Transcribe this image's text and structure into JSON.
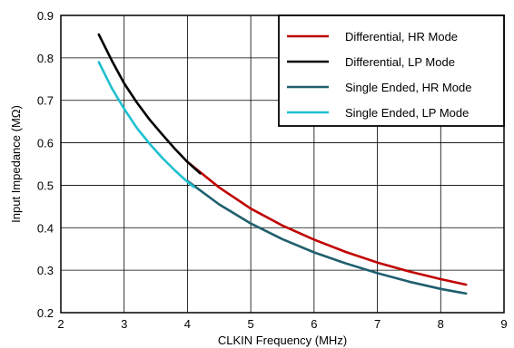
{
  "chart_data": {
    "type": "line",
    "title": "",
    "xlabel": "CLKIN Frequency (MHz)",
    "ylabel": "Input Impedance (MΩ)",
    "xlim": [
      2,
      9
    ],
    "ylim": [
      0.2,
      0.9
    ],
    "xticks": [
      "2",
      "3",
      "4",
      "5",
      "6",
      "7",
      "8",
      "9"
    ],
    "yticks": [
      "0.2",
      "0.3",
      "0.4",
      "0.5",
      "0.6",
      "0.7",
      "0.8",
      "0.9"
    ],
    "grid": true,
    "legend_position": "top-right",
    "series": [
      {
        "name": "Differential, HR Mode",
        "color": "#c00000",
        "x": [
          4.0,
          4.5,
          5.0,
          5.5,
          6.0,
          6.5,
          7.0,
          7.5,
          8.0,
          8.4
        ],
        "y": [
          0.555,
          0.495,
          0.445,
          0.405,
          0.372,
          0.343,
          0.318,
          0.297,
          0.279,
          0.266
        ]
      },
      {
        "name": "Differential, LP Mode",
        "color": "#000000",
        "x": [
          2.6,
          2.8,
          3.0,
          3.2,
          3.4,
          3.6,
          3.8,
          4.0,
          4.2
        ],
        "y": [
          0.855,
          0.795,
          0.74,
          0.695,
          0.655,
          0.62,
          0.586,
          0.555,
          0.528
        ]
      },
      {
        "name": "Single Ended, HR Mode",
        "color": "#1f5f6e",
        "x": [
          4.0,
          4.5,
          5.0,
          5.5,
          6.0,
          6.5,
          7.0,
          7.5,
          8.0,
          8.4
        ],
        "y": [
          0.51,
          0.455,
          0.41,
          0.373,
          0.342,
          0.316,
          0.293,
          0.273,
          0.256,
          0.245
        ]
      },
      {
        "name": "Single Ended, LP Mode",
        "color": "#1fc0d0",
        "x": [
          2.6,
          2.8,
          3.0,
          3.2,
          3.4,
          3.6,
          3.8,
          4.0,
          4.1
        ],
        "y": [
          0.79,
          0.73,
          0.68,
          0.635,
          0.598,
          0.565,
          0.535,
          0.508,
          0.496
        ]
      }
    ]
  }
}
